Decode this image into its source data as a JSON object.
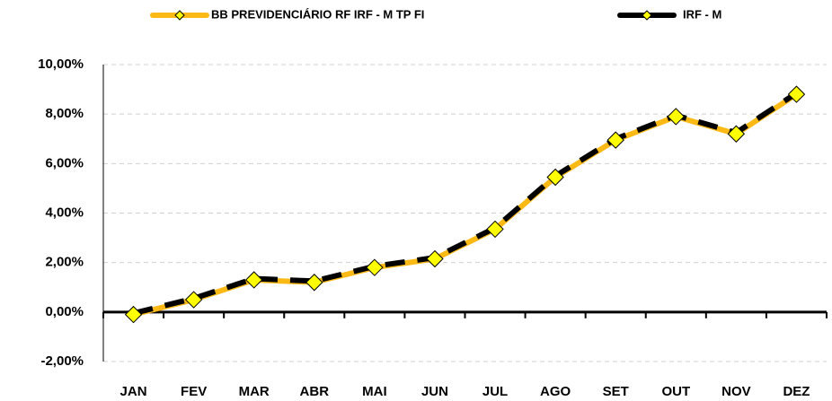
{
  "chart_data": {
    "type": "line",
    "categories": [
      "JAN",
      "FEV",
      "MAR",
      "ABR",
      "MAI",
      "JUN",
      "JUL",
      "AGO",
      "SET",
      "OUT",
      "NOV",
      "DEZ"
    ],
    "series": [
      {
        "name": "BB PREVIDENCIÁRIO RF IRF - M TP FI",
        "color": "#fbb916",
        "values": [
          -0.1,
          0.5,
          1.3,
          1.2,
          1.8,
          2.15,
          3.35,
          5.45,
          6.95,
          7.9,
          7.2,
          8.8
        ]
      },
      {
        "name": "IRF - M",
        "color": "#000000",
        "values": [
          -0.05,
          0.55,
          1.35,
          1.25,
          1.85,
          2.2,
          3.4,
          5.5,
          7.0,
          7.95,
          7.25,
          8.85
        ]
      }
    ],
    "marker_color": "#ffff00",
    "ylim": [
      -2,
      10
    ],
    "yticks": [
      {
        "value": -2,
        "label": "-2,00%"
      },
      {
        "value": 0,
        "label": "0,00%"
      },
      {
        "value": 2,
        "label": "2,00%"
      },
      {
        "value": 4,
        "label": "4,00%"
      },
      {
        "value": 6,
        "label": "6,00%"
      },
      {
        "value": 8,
        "label": "8,00%"
      },
      {
        "value": 10,
        "label": "10,00%"
      }
    ],
    "grid": true
  }
}
